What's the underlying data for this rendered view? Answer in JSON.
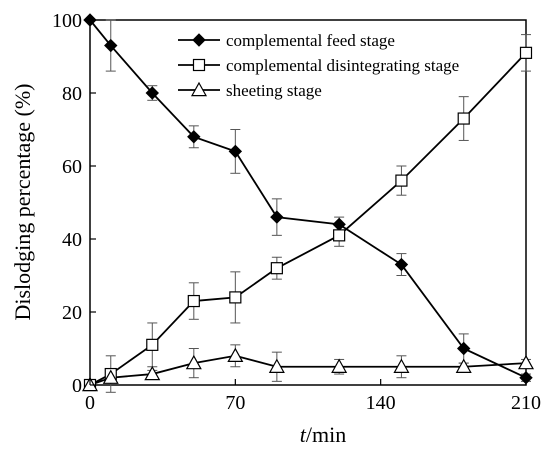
{
  "chart_data": {
    "type": "line",
    "xlabel_var": "t",
    "xlabel_unit": "/min",
    "ylabel": "Dislodging percentage (%)",
    "xlim": [
      0,
      210
    ],
    "ylim": [
      0,
      100
    ],
    "x_ticks": [
      0,
      70,
      140,
      210
    ],
    "y_ticks": [
      0,
      20,
      40,
      60,
      80,
      100
    ],
    "grid": false,
    "legend_position": "top-center",
    "series": [
      {
        "name": "complemental feed stage",
        "marker": "filled-diamond",
        "color": "#000000",
        "x": [
          0,
          10,
          30,
          50,
          70,
          90,
          120,
          150,
          180,
          210
        ],
        "y": [
          100,
          93,
          80,
          68,
          64,
          46,
          44,
          33,
          10,
          2
        ],
        "err": [
          0,
          7,
          2,
          3,
          6,
          5,
          2,
          3,
          4,
          1
        ]
      },
      {
        "name": "complemental disintegrating stage",
        "marker": "open-square",
        "color": "#000000",
        "x": [
          0,
          10,
          30,
          50,
          70,
          90,
          120,
          150,
          180,
          210
        ],
        "y": [
          0,
          3,
          11,
          23,
          24,
          32,
          41,
          56,
          73,
          91
        ],
        "err": [
          0,
          5,
          6,
          5,
          7,
          3,
          3,
          4,
          6,
          5
        ]
      },
      {
        "name": "sheeting stage",
        "marker": "open-triangle",
        "color": "#000000",
        "x": [
          0,
          10,
          30,
          50,
          70,
          90,
          120,
          150,
          180,
          210
        ],
        "y": [
          0,
          2,
          3,
          6,
          8,
          5,
          5,
          5,
          5,
          6
        ],
        "err": [
          0,
          1,
          1,
          4,
          3,
          4,
          2,
          3,
          1,
          1
        ]
      }
    ]
  }
}
